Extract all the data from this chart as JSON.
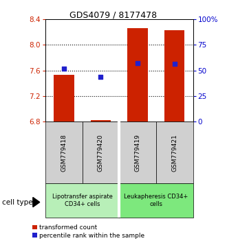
{
  "title": "GDS4079 / 8177478",
  "samples": [
    "GSM779418",
    "GSM779420",
    "GSM779419",
    "GSM779421"
  ],
  "red_values": [
    7.53,
    6.82,
    8.26,
    8.23
  ],
  "blue_values": [
    7.63,
    7.5,
    7.72,
    7.7
  ],
  "baseline": 6.8,
  "ylim_left": [
    6.8,
    8.4
  ],
  "ylim_right": [
    0,
    100
  ],
  "yticks_left": [
    6.8,
    7.2,
    7.6,
    8.0,
    8.4
  ],
  "yticks_right": [
    0,
    25,
    50,
    75,
    100
  ],
  "ytick_labels_right": [
    "0",
    "25",
    "50",
    "75",
    "100%"
  ],
  "groups": [
    {
      "label": "Lipotransfer aspirate\nCD34+ cells",
      "indices": [
        0,
        1
      ],
      "color": "#b8efb8"
    },
    {
      "label": "Leukapheresis CD34+\ncells",
      "indices": [
        2,
        3
      ],
      "color": "#7de87d"
    }
  ],
  "bar_color": "#cc2200",
  "dot_color": "#2020cc",
  "bar_width": 0.55,
  "sample_bg": "#d0d0d0",
  "left_axis_color": "#cc2200",
  "right_axis_color": "#0000cc",
  "legend_red_label": "transformed count",
  "legend_blue_label": "percentile rank within the sample",
  "cell_type_label": "cell type"
}
